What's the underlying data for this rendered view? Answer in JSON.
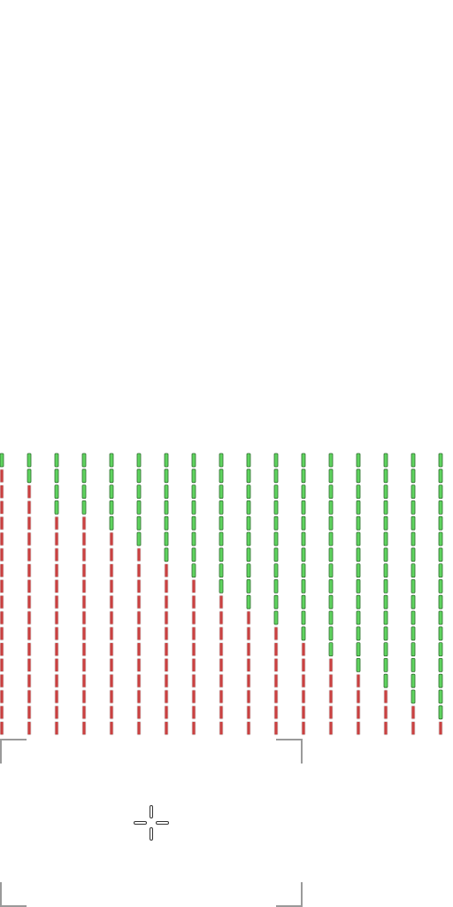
{
  "screen": {
    "background": "#ffffff"
  },
  "meters": {
    "active_color": "#5fd35f",
    "inactive_color": "#c94040",
    "segments_per_column": 18,
    "green_segments": [
      1,
      2,
      4,
      4,
      5,
      6,
      7,
      8,
      9,
      10,
      11,
      12,
      13,
      14,
      15,
      16,
      17
    ]
  },
  "selection_frame": {
    "icon": "corner-bracket-icon"
  },
  "cursor": {
    "icon": "crosshair-icon"
  }
}
